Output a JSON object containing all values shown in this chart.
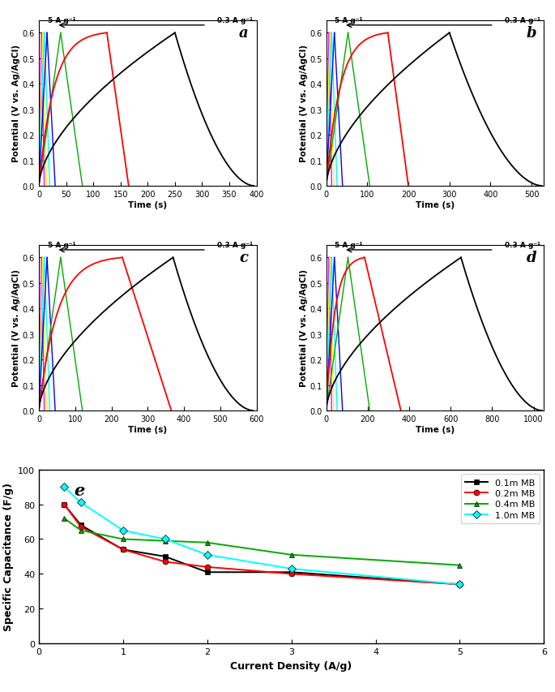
{
  "panels": {
    "a": {
      "xmax": 400,
      "red_charge": 125,
      "red_discharge_end": 165,
      "black_charge_end": 250,
      "black_end": 395
    },
    "b": {
      "xmax": 530,
      "red_charge": 150,
      "red_discharge_end": 200,
      "black_charge_end": 300,
      "black_end": 525
    },
    "c": {
      "xmax": 600,
      "red_charge": 230,
      "red_discharge_end": 365,
      "black_charge_end": 370,
      "black_end": 590
    },
    "d": {
      "xmax": 1050,
      "red_charge": 185,
      "red_discharge_end": 360,
      "black_charge_end": 650,
      "black_end": 1040
    }
  },
  "fast_curves": [
    {
      "color": "#FF00FF",
      "t_end": 5
    },
    {
      "color": "#FFFF00",
      "t_end": 7
    },
    {
      "color": "#00FFFF",
      "t_end": 10
    },
    {
      "color": "#0000FF",
      "t_end": 15
    },
    {
      "color": "#00AA00",
      "t_end": 40
    }
  ],
  "ylim": [
    0.0,
    0.65
  ],
  "yticks": [
    0.0,
    0.1,
    0.2,
    0.3,
    0.4,
    0.5,
    0.6
  ],
  "ylabel": "Potential (V vs. Ag/AgCl)",
  "xlabel": "Time (s)",
  "arrow_label_left": "5 A g⁻¹",
  "arrow_label_right": "0.3 A g⁻¹",
  "e_data": {
    "current_density": [
      0.3,
      0.5,
      1.0,
      1.5,
      2.0,
      3.0,
      5.0
    ],
    "series": {
      "0.1m MB": {
        "values": [
          80,
          68,
          54,
          50,
          41,
          41,
          34
        ],
        "color": "black",
        "marker": "s"
      },
      "0.2m MB": {
        "values": [
          80,
          67,
          54,
          47,
          44,
          40,
          34
        ],
        "color": "red",
        "marker": "o"
      },
      "0.4m MB": {
        "values": [
          72,
          65,
          60,
          59,
          58,
          51,
          45
        ],
        "color": "#00AA00",
        "marker": "^"
      },
      "1.0m MB": {
        "values": [
          90,
          81,
          65,
          60,
          51,
          43,
          34
        ],
        "color": "cyan",
        "marker": "D"
      }
    },
    "xlabel": "Current Density (A/g)",
    "ylabel": "Specific Capacitance (F/g)",
    "ylim": [
      0,
      100
    ],
    "xlim": [
      0,
      6
    ],
    "yticks": [
      0,
      20,
      40,
      60,
      80,
      100
    ],
    "xticks": [
      0,
      1,
      2,
      3,
      4,
      5,
      6
    ]
  }
}
